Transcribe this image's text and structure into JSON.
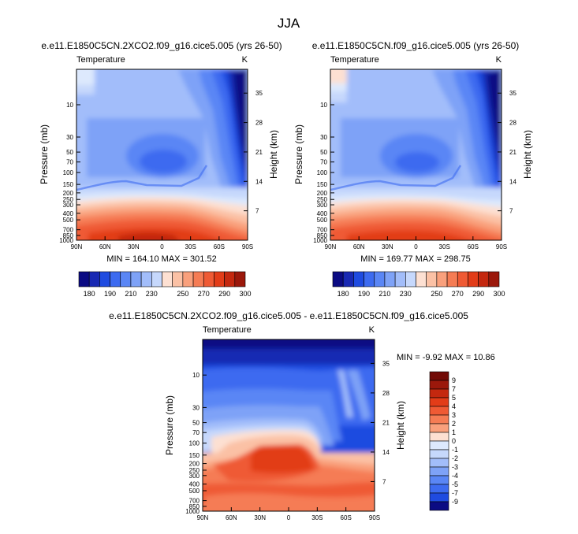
{
  "page": {
    "title": "JJA"
  },
  "palette": {
    "cold": [
      "#0b0b83",
      "#1929b3",
      "#1f4be0",
      "#3d6bf0",
      "#5a86f5",
      "#7ea2f7",
      "#a2bdfa",
      "#c6d8fc",
      "#dde9fd"
    ],
    "neutral": [
      "#f7f7f7"
    ],
    "warm": [
      "#fde0d2",
      "#fbc1a5",
      "#f9a07c",
      "#f57c54",
      "#ef5a34",
      "#e23c18",
      "#c4280f",
      "#9b180b",
      "#720a06"
    ]
  },
  "chart_data": [
    {
      "id": "panel1",
      "type": "heatmap",
      "title": "e.e11.E1850C5CN.2XCO2.f09_g16.cice5.005 (yrs 26-50)",
      "variable": "Temperature",
      "units": "K",
      "xlabel": "",
      "ylabel": "Pressure (mb)",
      "ylabel_right": "Height (km)",
      "x_ticks": [
        "90N",
        "60N",
        "30N",
        "0",
        "30S",
        "60S",
        "90S"
      ],
      "y_ticks_pressure": [
        "10",
        "30",
        "50",
        "70",
        "100",
        "150",
        "200",
        "250",
        "300",
        "400",
        "500",
        "700",
        "850",
        "1000"
      ],
      "y_ticks_height": [
        "35",
        "28",
        "21",
        "14",
        "7"
      ],
      "ylim_mb": [
        1000,
        3
      ],
      "stats_text": "MIN = 164.10   MAX = 301.52",
      "min": 164.1,
      "max": 301.52,
      "colorbar_labels": [
        "180",
        "190",
        "210",
        "230",
        "250",
        "270",
        "290",
        "300"
      ],
      "colorbar_levels": [
        180,
        190,
        200,
        210,
        220,
        230,
        240,
        250,
        260,
        270,
        280,
        290,
        295,
        300
      ]
    },
    {
      "id": "panel2",
      "type": "heatmap",
      "title": "e.e11.E1850C5CN.f09_g16.cice5.005 (yrs 26-50)",
      "variable": "Temperature",
      "units": "K",
      "xlabel": "",
      "ylabel": "Pressure (mb)",
      "ylabel_right": "Height (km)",
      "x_ticks": [
        "90N",
        "60N",
        "30N",
        "0",
        "30S",
        "60S",
        "90S"
      ],
      "y_ticks_pressure": [
        "10",
        "30",
        "50",
        "70",
        "100",
        "150",
        "200",
        "250",
        "300",
        "400",
        "500",
        "700",
        "850",
        "1000"
      ],
      "y_ticks_height": [
        "35",
        "28",
        "21",
        "14",
        "7"
      ],
      "ylim_mb": [
        1000,
        3
      ],
      "stats_text": "MIN = 169.77   MAX = 298.75",
      "min": 169.77,
      "max": 298.75,
      "colorbar_labels": [
        "180",
        "190",
        "210",
        "230",
        "250",
        "270",
        "290",
        "300"
      ],
      "colorbar_levels": [
        180,
        190,
        200,
        210,
        220,
        230,
        240,
        250,
        260,
        270,
        280,
        290,
        295,
        300
      ]
    },
    {
      "id": "panel3",
      "type": "heatmap",
      "title": "e.e11.E1850C5CN.2XCO2.f09_g16.cice5.005 - e.e11.E1850C5CN.f09_g16.cice5.005",
      "variable": "Temperature",
      "units": "K",
      "xlabel": "",
      "ylabel": "Pressure (mb)",
      "ylabel_right": "Height (km)",
      "x_ticks": [
        "90N",
        "60N",
        "30N",
        "0",
        "30S",
        "60S",
        "90S"
      ],
      "y_ticks_pressure": [
        "10",
        "30",
        "50",
        "70",
        "100",
        "150",
        "200",
        "250",
        "300",
        "400",
        "500",
        "700",
        "850",
        "1000"
      ],
      "y_ticks_height": [
        "35",
        "28",
        "21",
        "14",
        "7"
      ],
      "ylim_mb": [
        1000,
        3
      ],
      "stats_text": "MIN = -9.92   MAX = 10.86",
      "min": -9.92,
      "max": 10.86,
      "colorbar_labels": [
        "9",
        "7",
        "5",
        "4",
        "3",
        "2",
        "1",
        "0",
        "-1",
        "-2",
        "-3",
        "-4",
        "-5",
        "-7",
        "-9"
      ],
      "colorbar_levels": [
        9,
        7,
        5,
        4,
        3,
        2,
        1,
        0,
        -1,
        -2,
        -3,
        -4,
        -5,
        -7,
        -9
      ]
    }
  ]
}
